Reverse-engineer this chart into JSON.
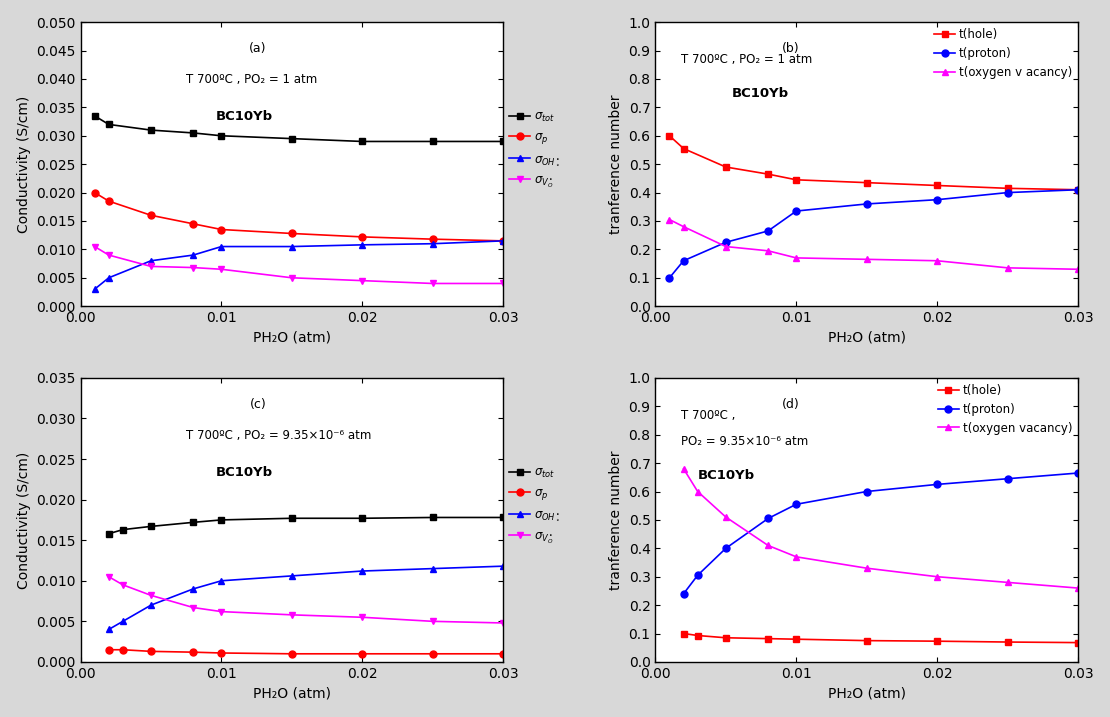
{
  "panel_a": {
    "label": "(a)",
    "annotation_line1": "T 700ºC , PO₂ = 1 atm",
    "annotation_line2": "BC10Yb",
    "x": [
      0.001,
      0.002,
      0.005,
      0.008,
      0.01,
      0.015,
      0.02,
      0.025,
      0.03
    ],
    "sigma_tot": [
      0.0335,
      0.032,
      0.031,
      0.0305,
      0.03,
      0.0295,
      0.029,
      0.029,
      0.029
    ],
    "sigma_p": [
      0.02,
      0.0185,
      0.016,
      0.0145,
      0.0135,
      0.0128,
      0.0122,
      0.0118,
      0.0115
    ],
    "sigma_OH": [
      0.003,
      0.005,
      0.008,
      0.009,
      0.0105,
      0.0105,
      0.0108,
      0.011,
      0.0115
    ],
    "sigma_VO": [
      0.0105,
      0.009,
      0.007,
      0.0068,
      0.0065,
      0.005,
      0.0045,
      0.004,
      0.004
    ],
    "ylim": [
      0.0,
      0.05
    ],
    "yticks": [
      0.0,
      0.005,
      0.01,
      0.015,
      0.02,
      0.025,
      0.03,
      0.035,
      0.04,
      0.045,
      0.05
    ],
    "ylabel": "Conductivity (S/cm)",
    "legend_labels": [
      "σ_tot",
      "σ_p",
      "σ_OH",
      "σ_VO"
    ]
  },
  "panel_b": {
    "label": "(b)",
    "annotation_line1": "T 700ºC , PO₂ = 1 atm",
    "annotation_line2": "BC10Yb",
    "x": [
      0.001,
      0.002,
      0.005,
      0.008,
      0.01,
      0.015,
      0.02,
      0.025,
      0.03
    ],
    "t_hole": [
      0.6,
      0.555,
      0.49,
      0.465,
      0.445,
      0.435,
      0.425,
      0.415,
      0.41
    ],
    "t_proton": [
      0.1,
      0.16,
      0.225,
      0.265,
      0.335,
      0.36,
      0.375,
      0.4,
      0.41
    ],
    "t_VO": [
      0.305,
      0.28,
      0.21,
      0.195,
      0.17,
      0.165,
      0.16,
      0.135,
      0.13
    ],
    "ylim": [
      0.0,
      1.0
    ],
    "yticks": [
      0.0,
      0.1,
      0.2,
      0.3,
      0.4,
      0.5,
      0.6,
      0.7,
      0.8,
      0.9,
      1.0
    ],
    "ylabel": "tranference number"
  },
  "panel_c": {
    "label": "(c)",
    "annotation_line1": "T 700ºC , PO₂ = 9.35×10⁻⁶ atm",
    "annotation_line2": "BC10Yb",
    "x": [
      0.002,
      0.003,
      0.005,
      0.008,
      0.01,
      0.015,
      0.02,
      0.025,
      0.03
    ],
    "sigma_tot": [
      0.0158,
      0.0163,
      0.0167,
      0.0172,
      0.0175,
      0.0177,
      0.0177,
      0.0178,
      0.0178
    ],
    "sigma_p": [
      0.0015,
      0.0015,
      0.0013,
      0.0012,
      0.0011,
      0.001,
      0.001,
      0.001,
      0.001
    ],
    "sigma_OH": [
      0.004,
      0.005,
      0.007,
      0.009,
      0.01,
      0.0106,
      0.0112,
      0.0115,
      0.0118
    ],
    "sigma_VO": [
      0.0105,
      0.0095,
      0.0082,
      0.0067,
      0.0062,
      0.0058,
      0.0055,
      0.005,
      0.0048
    ],
    "ylim": [
      0.0,
      0.035
    ],
    "yticks": [
      0.0,
      0.005,
      0.01,
      0.015,
      0.02,
      0.025,
      0.03,
      0.035
    ],
    "ylabel": "Conductivity (S/cm)"
  },
  "panel_d": {
    "label": "(d)",
    "annotation_line1": "T 700ºC ,",
    "annotation_line2": "PO₂ = 9.35×10⁻⁶ atm",
    "annotation_line3": "BC10Yb",
    "x": [
      0.002,
      0.003,
      0.005,
      0.008,
      0.01,
      0.015,
      0.02,
      0.025,
      0.03
    ],
    "t_hole": [
      0.1,
      0.093,
      0.085,
      0.082,
      0.08,
      0.075,
      0.073,
      0.07,
      0.068
    ],
    "t_proton": [
      0.24,
      0.305,
      0.4,
      0.505,
      0.555,
      0.6,
      0.625,
      0.645,
      0.665
    ],
    "t_VO": [
      0.68,
      0.6,
      0.51,
      0.41,
      0.37,
      0.33,
      0.3,
      0.28,
      0.26
    ],
    "ylim": [
      0.0,
      1.0
    ],
    "yticks": [
      0.0,
      0.1,
      0.2,
      0.3,
      0.4,
      0.5,
      0.6,
      0.7,
      0.8,
      0.9,
      1.0
    ],
    "ylabel": "tranference number"
  },
  "colors": {
    "black": "#000000",
    "red": "#FF0000",
    "blue": "#0000FF",
    "magenta": "#FF00FF"
  },
  "fig_facecolor": "#d8d8d8",
  "xlabel": "PH₂O (atm)"
}
